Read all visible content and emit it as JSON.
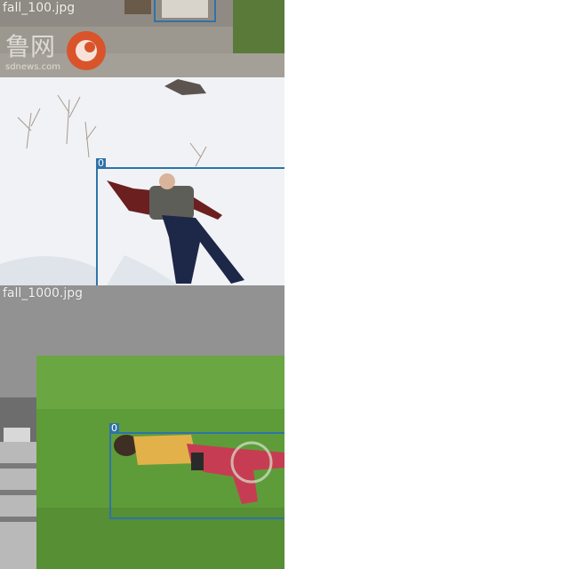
{
  "tiles": [
    {
      "filename": "fall_100.jpg"
    },
    {
      "filename": ""
    },
    {
      "filename": "fall_1000.jpg"
    }
  ],
  "boxes": [
    {
      "class_label": ""
    },
    {
      "class_label": "0"
    },
    {
      "class_label": "0"
    }
  ],
  "watermark": {
    "text": "鲁网",
    "domain": "sdnews.com"
  },
  "box_color": "#2f73a8",
  "label_color": "#ffffff"
}
